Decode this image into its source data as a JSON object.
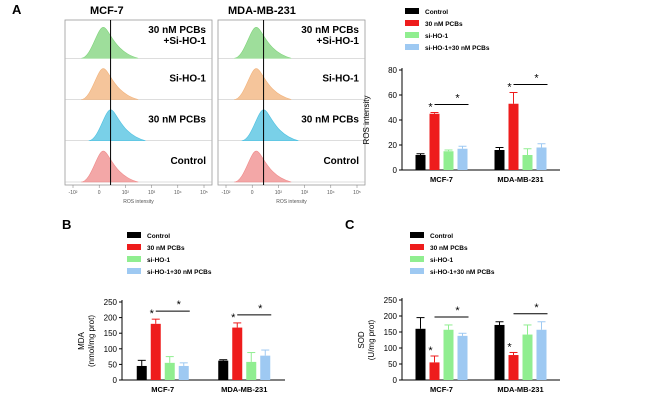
{
  "panels": {
    "a": "A",
    "b": "B",
    "c": "C"
  },
  "flow": {
    "cell_lines": [
      "MCF-7",
      "MDA-MB-231"
    ],
    "row_labels": [
      "30 nM PCBs\n+Si-HO-1",
      "Si-HO-1",
      "30 nM PCBs",
      "Control"
    ],
    "xlabel": "ROS intensity",
    "ticks": [
      "-10²",
      "0",
      "10²",
      "10³",
      "10⁴",
      "10⁵"
    ],
    "colors": [
      "#7ed37a",
      "#f2b27a",
      "#4cc0e0",
      "#ef8a8a"
    ]
  },
  "chart_data": [
    {
      "id": "ros",
      "type": "bar",
      "title": "",
      "ylabel": "ROS intensity",
      "xlabel": "",
      "ylim": [
        0,
        80
      ],
      "yticks": [
        0,
        20,
        40,
        60,
        80
      ],
      "categories": [
        "MCF-7",
        "MDA-MB-231"
      ],
      "series": [
        {
          "name": "Control",
          "color": "#000000",
          "values": [
            12,
            16
          ],
          "errors": [
            1,
            2
          ]
        },
        {
          "name": "30 nM PCBs",
          "color": "#ee1c1c",
          "values": [
            45,
            53
          ],
          "errors": [
            1,
            9
          ]
        },
        {
          "name": "si-HO-1",
          "color": "#90ee90",
          "values": [
            15,
            12
          ],
          "errors": [
            1,
            5
          ]
        },
        {
          "name": "si-HO-1+30 nM PCBs",
          "color": "#9ec9f2",
          "values": [
            17,
            18
          ],
          "errors": [
            2,
            3
          ]
        }
      ],
      "annotations": {
        "red": "*",
        "blue": "*"
      }
    },
    {
      "id": "mda",
      "type": "bar",
      "title": "",
      "ylabel": "MDA\n(nmol/mg prot)",
      "xlabel": "",
      "ylim": [
        0,
        250
      ],
      "yticks": [
        0,
        50,
        100,
        150,
        200,
        250
      ],
      "categories": [
        "MCF-7",
        "MDA-MB-231"
      ],
      "series": [
        {
          "name": "Control",
          "color": "#000000",
          "values": [
            45,
            62
          ],
          "errors": [
            18,
            3
          ]
        },
        {
          "name": "30 nM PCBs",
          "color": "#ee1c1c",
          "values": [
            180,
            168
          ],
          "errors": [
            15,
            15
          ]
        },
        {
          "name": "si-HO-1",
          "color": "#90ee90",
          "values": [
            55,
            58
          ],
          "errors": [
            20,
            30
          ]
        },
        {
          "name": "si-HO-1+30 nM PCBs",
          "color": "#9ec9f2",
          "values": [
            45,
            78
          ],
          "errors": [
            10,
            18
          ]
        }
      ],
      "annotations": {
        "red": "*",
        "blue": "*"
      }
    },
    {
      "id": "sod",
      "type": "bar",
      "title": "",
      "ylabel": "SOD\n(U/mg prot)",
      "xlabel": "",
      "ylim": [
        0,
        250
      ],
      "yticks": [
        0,
        50,
        100,
        150,
        200,
        250
      ],
      "categories": [
        "MCF-7",
        "MDA-MB-231"
      ],
      "series": [
        {
          "name": "Control",
          "color": "#000000",
          "values": [
            160,
            172
          ],
          "errors": [
            35,
            10
          ]
        },
        {
          "name": "30 nM PCBs",
          "color": "#ee1c1c",
          "values": [
            55,
            78
          ],
          "errors": [
            20,
            8
          ]
        },
        {
          "name": "si-HO-1",
          "color": "#90ee90",
          "values": [
            157,
            142
          ],
          "errors": [
            15,
            30
          ]
        },
        {
          "name": "si-HO-1+30 nM PCBs",
          "color": "#9ec9f2",
          "values": [
            138,
            157
          ],
          "errors": [
            8,
            25
          ]
        }
      ],
      "annotations": {
        "red": "*",
        "blue": "*"
      }
    }
  ]
}
